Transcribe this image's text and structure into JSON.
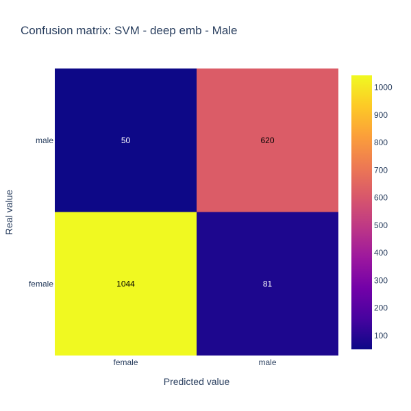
{
  "chart_data": {
    "type": "heatmap",
    "title": "Confusion matrix: SVM - deep emb - Male",
    "xlabel": "Predicted value",
    "ylabel": "Real value",
    "x_categories": [
      "female",
      "male"
    ],
    "y_categories": [
      "female",
      "male"
    ],
    "z": [
      [
        1044,
        81
      ],
      [
        50,
        620
      ]
    ],
    "colorscale": "plasma",
    "zmin": 50,
    "zmax": 1044,
    "colorbar_ticks": [
      100,
      200,
      300,
      400,
      500,
      600,
      700,
      800,
      900,
      1000
    ],
    "colorbar_placement": "right"
  }
}
